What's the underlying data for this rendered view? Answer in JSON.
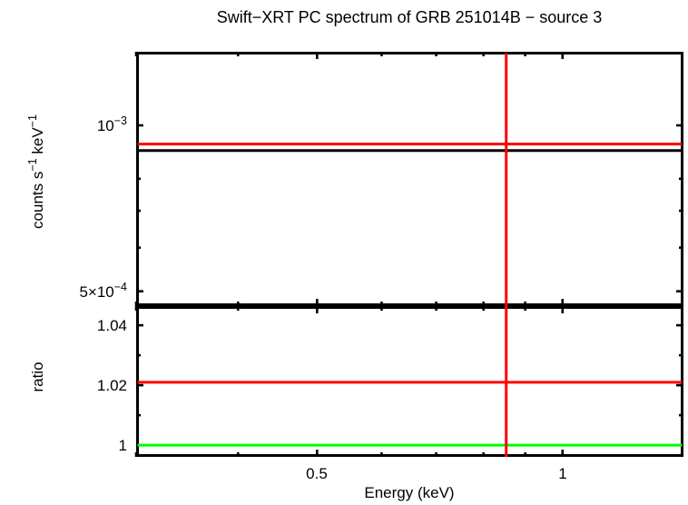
{
  "page": {
    "background": "#ffffff"
  },
  "title": "Swift−XRT PC spectrum of GRB 251014B − source 3",
  "axis_labels": {
    "x": "Energy (keV)",
    "y_bottom": "ratio",
    "y_top_parts": {
      "a": "counts s",
      "a_sup": "−1",
      "b": " keV",
      "b_sup": "−1"
    }
  },
  "tick_labels": {
    "x": [
      "0.5",
      "1"
    ],
    "y_top": [
      {
        "main": "10",
        "sup": "−3"
      },
      {
        "main": "5×10",
        "sup": "−4"
      }
    ],
    "y_bottom": [
      "1.04",
      "1.02",
      "1"
    ]
  },
  "colors": {
    "frame": "#000000",
    "data_black": "#000000",
    "model_red": "#ff0000",
    "unity_green": "#00ff00",
    "background": "#ffffff"
  },
  "chart_data": [
    {
      "panel": "spectrum",
      "type": "line",
      "xscale": "log",
      "yscale": "log",
      "xlabel": "Energy (keV)",
      "ylabel": "counts s−1 keV−1",
      "xlim": [
        0.3,
        1.407
      ],
      "ylim": [
        0.00047,
        0.00136
      ],
      "x_major_ticks": [
        0.5,
        1.0
      ],
      "x_minor_ticks": [
        0.3,
        0.4,
        0.6,
        0.7,
        0.8,
        0.9
      ],
      "y_major_ticks": [
        0.001,
        0.0005
      ],
      "y_minor_ticks": [
        0.0009,
        0.0008,
        0.0007,
        0.0006
      ],
      "grid": false,
      "series": [
        {
          "name": "data-level",
          "color": "#000000",
          "style": "hline",
          "value": 0.0009
        },
        {
          "name": "model-level",
          "color": "#ff0000",
          "style": "hline",
          "value": 0.000925
        },
        {
          "name": "bin-marker",
          "color": "#ff0000",
          "style": "vline",
          "x": 0.853
        }
      ]
    },
    {
      "panel": "ratio",
      "type": "line",
      "xscale": "log",
      "yscale": "linear",
      "ylabel": "ratio",
      "xlim": [
        0.3,
        1.407
      ],
      "ylim": [
        0.9961,
        1.0464
      ],
      "x_major_ticks": [
        0.5,
        1.0
      ],
      "x_minor_ticks": [
        0.3,
        0.4,
        0.6,
        0.7,
        0.8,
        0.9
      ],
      "y_major_ticks": [
        1.0,
        1.02,
        1.04
      ],
      "y_minor_ticks": [
        1.01,
        1.03
      ],
      "grid": false,
      "series": [
        {
          "name": "ratio-level",
          "color": "#ff0000",
          "style": "hline",
          "value": 1.021
        },
        {
          "name": "unity-line",
          "color": "#00ff00",
          "style": "hline",
          "value": 1.0
        },
        {
          "name": "bin-marker",
          "color": "#ff0000",
          "style": "vline",
          "x": 0.853
        }
      ]
    }
  ]
}
